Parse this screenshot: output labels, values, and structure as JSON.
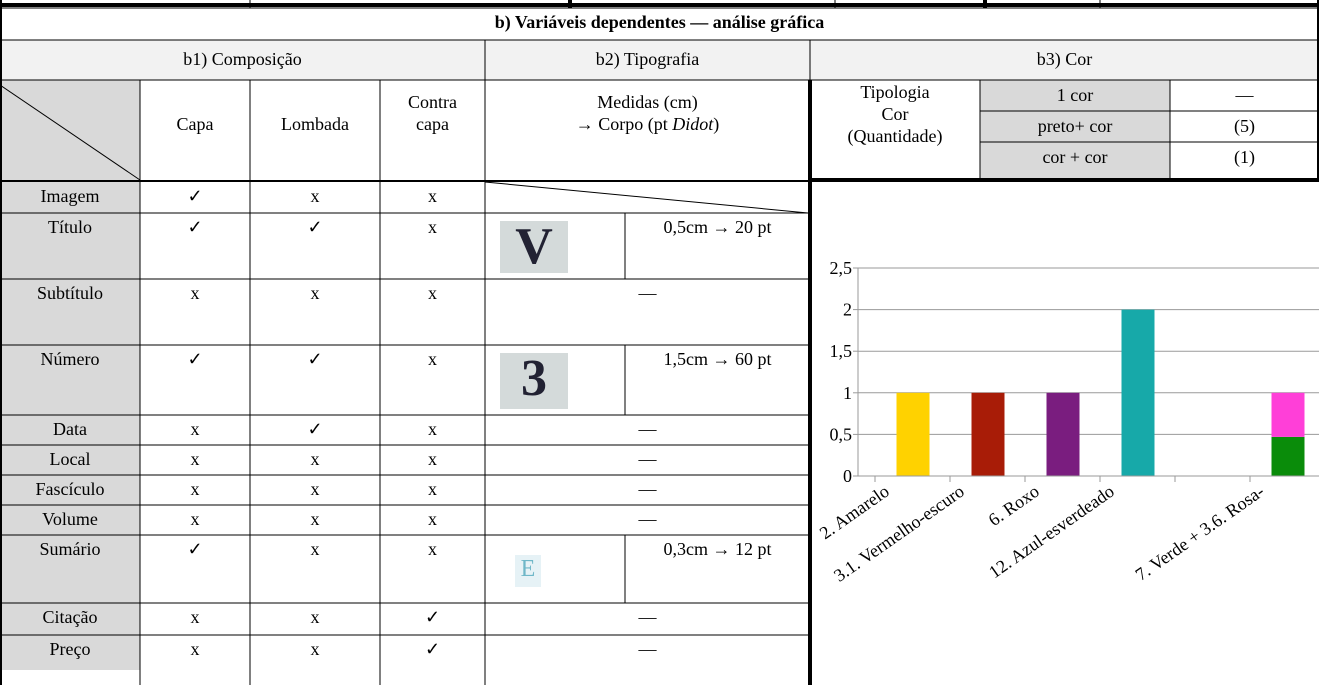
{
  "title": "b) Variáveis dependentes — análise gráfica",
  "sections": [
    "b1) Composição",
    "b2) Tipografia",
    "b3) Cor"
  ],
  "columns": [
    "Capa",
    "Lombada",
    "Contra capa"
  ],
  "typography_header": [
    "Medidas (cm)",
    "→ Corpo (pt",
    "Didot",
    ")"
  ],
  "color_header": {
    "label": [
      "Tipologia",
      "Cor",
      "(Quantidade)"
    ],
    "rows": [
      [
        "1 cor",
        "—"
      ],
      [
        "preto+ cor",
        "(5)"
      ],
      [
        "cor + cor",
        "(1)"
      ]
    ]
  },
  "rows": [
    {
      "label": "Imagem",
      "marks": [
        "✓",
        "x",
        "x"
      ]
    },
    {
      "label": "Título",
      "marks": [
        "✓",
        "✓",
        "x"
      ],
      "glyph": "V",
      "measure": "0,5cm → 20 pt"
    },
    {
      "label": "Subtítulo",
      "marks": [
        "x",
        "x",
        "x"
      ],
      "typography": "—"
    },
    {
      "label": "Número",
      "marks": [
        "✓",
        "✓",
        "x"
      ],
      "glyph": "3",
      "measure": "1,5cm → 60 pt"
    },
    {
      "label": "Data",
      "marks": [
        "x",
        "✓",
        "x"
      ],
      "typography": "—"
    },
    {
      "label": "Local",
      "marks": [
        "x",
        "x",
        "x"
      ],
      "typography": "—"
    },
    {
      "label": "Fascículo",
      "marks": [
        "x",
        "x",
        "x"
      ],
      "typography": "—"
    },
    {
      "label": "Volume",
      "marks": [
        "x",
        "x",
        "x"
      ],
      "typography": "—"
    },
    {
      "label": "Sumário",
      "marks": [
        "✓",
        "x",
        "x"
      ],
      "glyph": "E",
      "measure": "0,3cm → 12 pt"
    },
    {
      "label": "Citação",
      "marks": [
        "x",
        "x",
        "✓"
      ],
      "typography": "—"
    },
    {
      "label": "Preço",
      "marks": [
        "x",
        "x",
        "✓"
      ],
      "typography": "—"
    }
  ],
  "chart_data": {
    "type": "bar",
    "stacked": true,
    "grid": true,
    "categories": [
      "2. Amarelo",
      "3.1. Vermelho-escuro",
      "6. Roxo",
      "12. Azul-esverdeado",
      null,
      "7. Verde + 3.6. Rosa-"
    ],
    "series": [
      {
        "colors": [
          "#ffd200",
          "#a81c07",
          "#7a1d7f",
          "#17a9a9",
          null,
          "#0a8c0a"
        ],
        "values": [
          1,
          1,
          1,
          2,
          null,
          0.47
        ]
      },
      {
        "colors": [
          null,
          null,
          null,
          null,
          null,
          "#ff3fd8"
        ],
        "values": [
          null,
          null,
          null,
          null,
          null,
          0.53
        ]
      }
    ],
    "ylim": [
      0,
      2.5
    ],
    "yticks": [
      0,
      {
        "value": 0.5,
        "label": "0,5"
      },
      1,
      {
        "value": 1.5,
        "label": "1,5"
      },
      2,
      {
        "value": 2.5,
        "label": "2,5"
      }
    ]
  }
}
